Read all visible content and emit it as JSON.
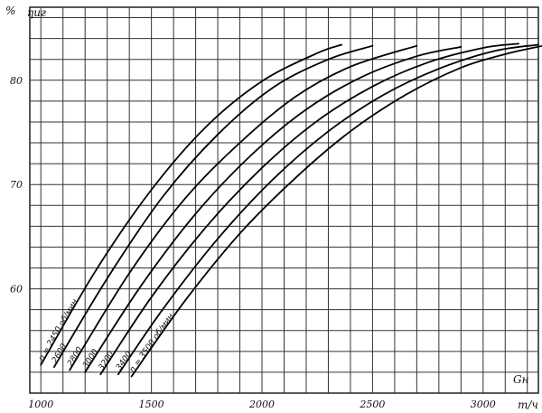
{
  "chart_data": {
    "type": "line",
    "title": "",
    "xlabel": "Gн",
    "xunit": "т/ч",
    "ylabel": "ηиг",
    "yunit": "%",
    "xlim": [
      950,
      3250
    ],
    "ylim": [
      50,
      87
    ],
    "x_ticks": [
      1000,
      1500,
      2000,
      2500,
      3000
    ],
    "y_ticks": [
      60,
      70,
      80
    ],
    "grid": true,
    "series": [
      {
        "name": "n = 2450 об/мин",
        "x": [
          1000,
          1250,
          1500,
          1750,
          2000,
          2250,
          2360
        ],
        "y": [
          52.7,
          61.8,
          69.5,
          75.6,
          79.9,
          82.6,
          83.4
        ]
      },
      {
        "name": "2600",
        "x": [
          1060,
          1300,
          1550,
          1800,
          2050,
          2300,
          2500
        ],
        "y": [
          52.5,
          61.0,
          68.8,
          74.8,
          79.3,
          82.0,
          83.3
        ]
      },
      {
        "name": "2800",
        "x": [
          1130,
          1400,
          1650,
          1900,
          2150,
          2400,
          2700
        ],
        "y": [
          52.2,
          61.5,
          68.6,
          74.0,
          78.4,
          81.3,
          83.3
        ]
      },
      {
        "name": "3000",
        "x": [
          1200,
          1450,
          1700,
          1950,
          2200,
          2450,
          2700,
          2900
        ],
        "y": [
          52.0,
          60.2,
          67.2,
          72.8,
          77.2,
          80.3,
          82.3,
          83.2
        ]
      },
      {
        "name": "3200",
        "x": [
          1270,
          1500,
          1750,
          2000,
          2250,
          2500,
          2750,
          3000,
          3160
        ],
        "y": [
          51.8,
          59.2,
          66.0,
          71.6,
          76.1,
          79.4,
          81.7,
          83.1,
          83.5
        ]
      },
      {
        "name": "3400",
        "x": [
          1350,
          1550,
          1800,
          2050,
          2300,
          2550,
          2800,
          3050,
          3250
        ],
        "y": [
          51.8,
          58.0,
          64.8,
          70.5,
          75.1,
          78.6,
          81.1,
          82.8,
          83.4
        ]
      },
      {
        "name": "n = 3500 об/мин",
        "x": [
          1410,
          1650,
          1900,
          2150,
          2400,
          2650,
          2900,
          3100,
          3270
        ],
        "y": [
          51.6,
          58.8,
          65.3,
          70.6,
          75.1,
          78.6,
          81.2,
          82.5,
          83.3
        ]
      }
    ],
    "curve_labels": [
      "n = 2450 об/мин",
      "2600",
      "2800",
      "3000",
      "3200",
      "3400",
      "n = 3500 об/мин"
    ]
  }
}
